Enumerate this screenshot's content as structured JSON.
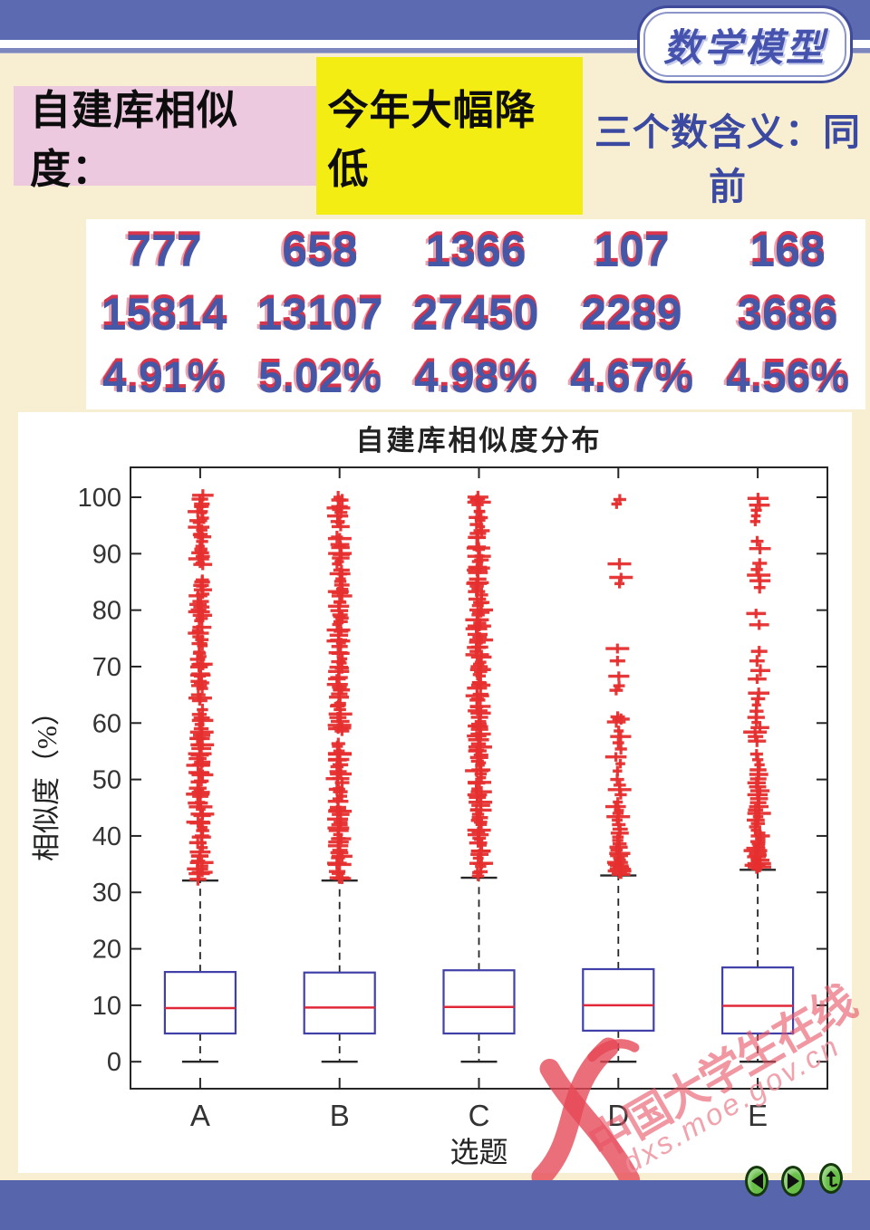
{
  "header": {
    "logo_text": "数学模型"
  },
  "banner": {
    "prefix": "自建库相似度：",
    "highlight": "今年大幅降低",
    "side_note": "三个数含义：同前"
  },
  "stats": {
    "rows": [
      [
        "777",
        "658",
        "1366",
        "107",
        "168"
      ],
      [
        "15814",
        "13107",
        "27450",
        "2289",
        "3686"
      ],
      [
        "4.91%",
        "5.02%",
        "4.98%",
        "4.67%",
        "4.56%"
      ]
    ]
  },
  "chart_data": {
    "type": "boxplot",
    "title": "自建库相似度分布",
    "xlabel": "选题",
    "ylabel": "相似度（%）",
    "categories": [
      "A",
      "B",
      "C",
      "D",
      "E"
    ],
    "ylim": [
      -5,
      105
    ],
    "yticks": [
      0,
      10,
      20,
      30,
      40,
      50,
      60,
      70,
      80,
      90,
      100
    ],
    "grid": false,
    "series": [
      {
        "label": "A",
        "q1": 5.0,
        "median": 9.5,
        "q3": 15.9,
        "whisker_low": 0,
        "whisker_high": 32.1,
        "outlier_band": {
          "from": 32.4,
          "to": 100.3,
          "count": 125,
          "seed": 11,
          "gaps": [
            [
              86.2,
              87.6
            ],
            [
              62.5,
              63.6
            ]
          ]
        }
      },
      {
        "label": "B",
        "q1": 5.0,
        "median": 9.6,
        "q3": 15.8,
        "whisker_low": 0,
        "whisker_high": 32.1,
        "outlier_band": {
          "from": 32.4,
          "to": 100.3,
          "count": 122,
          "seed": 22,
          "gaps": [
            [
              93.2,
              94.4
            ],
            [
              56.4,
              57.4
            ]
          ]
        }
      },
      {
        "label": "C",
        "q1": 5.0,
        "median": 9.7,
        "q3": 16.2,
        "whisker_low": 0,
        "whisker_high": 32.6,
        "outlier_band": {
          "from": 32.9,
          "to": 100.4,
          "count": 130,
          "seed": 33,
          "gaps": [
            [
              91.4,
              92.3
            ]
          ]
        }
      },
      {
        "label": "D",
        "q1": 5.5,
        "median": 10.0,
        "q3": 16.4,
        "whisker_low": 0,
        "whisker_high": 33.0,
        "outliers": [
          33.2,
          33.5,
          33.8,
          34.1,
          34.4,
          34.7,
          35.0,
          35.3,
          35.7,
          36.1,
          36.5,
          36.9,
          37.5,
          38.0,
          38.6,
          39.2,
          39.8,
          40.5,
          41.2,
          42.0,
          42.8,
          43.4,
          44.0,
          44.5,
          45.2,
          46.0,
          47.3,
          48.2,
          49.0,
          50.0,
          51.5,
          52.8,
          54.0,
          55.4,
          56.5,
          57.6,
          58.6,
          60.2,
          60.7,
          61.1,
          65.8,
          66.6,
          68.3,
          71.0,
          73.2,
          84.7,
          85.8,
          88.2,
          98.8,
          99.6
        ]
      },
      {
        "label": "E",
        "q1": 5.0,
        "median": 9.9,
        "q3": 16.7,
        "whisker_low": 0,
        "whisker_high": 34.0,
        "outliers": [
          34.2,
          34.5,
          34.8,
          35.1,
          35.4,
          35.7,
          36.0,
          36.3,
          36.6,
          37.0,
          37.4,
          37.8,
          38.2,
          38.6,
          39.0,
          39.5,
          40.0,
          40.5,
          41.0,
          41.6,
          42.2,
          42.8,
          43.4,
          44.0,
          44.6,
          45.2,
          45.9,
          46.6,
          47.3,
          48.0,
          48.7,
          49.4,
          50.1,
          50.9,
          51.7,
          52.6,
          53.5,
          54.5,
          56.8,
          57.6,
          58.4,
          59.2,
          60.1,
          61.0,
          62.1,
          63.2,
          64.3,
          65.3,
          67.8,
          69.3,
          71.0,
          72.7,
          77.4,
          79.4,
          84.0,
          85.2,
          86.2,
          87.2,
          88.3,
          90.9,
          92.2,
          95.7,
          96.7,
          97.7,
          98.6,
          99.8
        ]
      }
    ],
    "colors": {
      "box": "#4040a8",
      "median": "#e02838",
      "outlier": "#e62f2f",
      "axis": "#262626",
      "label": "#333333"
    }
  },
  "watermark": {
    "line1": "中国大学生在线",
    "line2": "dxs.moe.gov.cn"
  },
  "nav": {
    "prev_label": "previous",
    "next_label": "next",
    "return_label": "return"
  },
  "theme": {
    "page_bg": "#f8eed1",
    "header_bg": "#5b6ab1",
    "banner_bg": "#ecc9df",
    "highlight_bg": "#f3ed13",
    "note_blue": "#3b4aa0",
    "stat_blue": "#4557a7",
    "stat_red": "#d8344c",
    "footer_bg": "#5765ad",
    "button_green": "#67bf48",
    "watermark_pink": "#e85264"
  }
}
